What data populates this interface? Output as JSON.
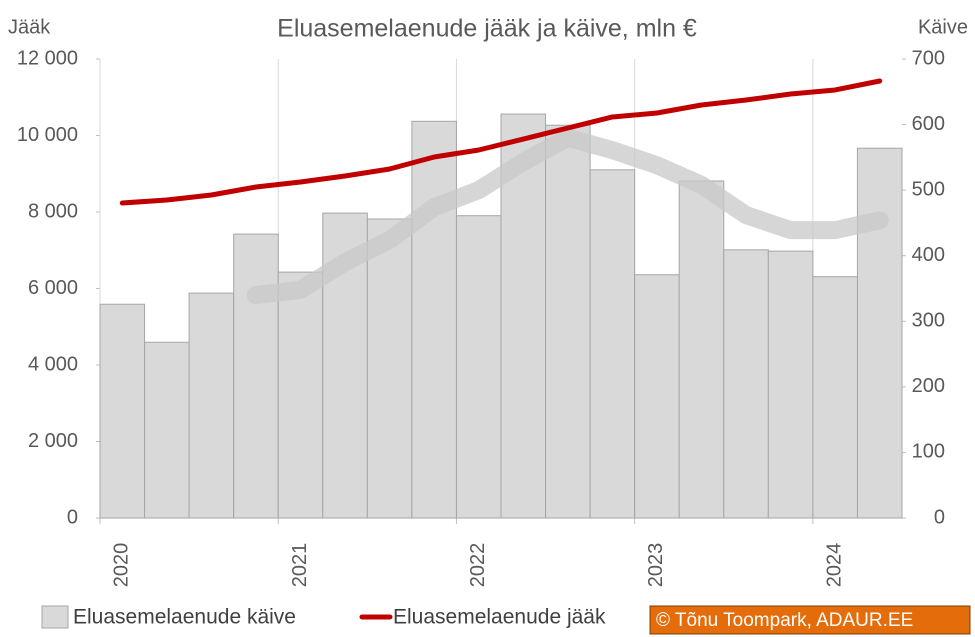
{
  "chart_data": {
    "type": "bar-line",
    "title": "Eluasemelaenude jääk ja käive, mln €",
    "y_label": "Jääk",
    "y2_label": "Käive",
    "credit": "© Tõnu Toompark, ADAUR.EE",
    "categories": [
      "2020",
      null,
      null,
      null,
      "2021",
      null,
      null,
      null,
      "2022",
      null,
      null,
      null,
      "2023",
      null,
      null,
      null,
      "2024",
      null
    ],
    "series": [
      {
        "name": "Eluasemelaenude käive",
        "type": "bar",
        "axis": "y2",
        "color": "#d9d9d9",
        "values": [
          326,
          268,
          343,
          433,
          375,
          465,
          456,
          605,
          461,
          616,
          599,
          531,
          371,
          514,
          409,
          407,
          368,
          564
        ]
      },
      {
        "name": "Eluasemelaenude jääk",
        "type": "line",
        "color": "#c00000",
        "values": [
          8235,
          8314,
          8444,
          8654,
          8784,
          8941,
          9124,
          9438,
          9621,
          9908,
          10196,
          10484,
          10588,
          10797,
          10928,
          11085,
          11190,
          11425
        ]
      }
    ],
    "trend": {
      "axis": "y2",
      "color": "#c8c8c8",
      "values": [
        null,
        null,
        null,
        340,
        348,
        390,
        424,
        474,
        500,
        543,
        580,
        561,
        538,
        508,
        462,
        439,
        439,
        454
      ]
    },
    "ylim": [
      0,
      12000
    ],
    "yticks": [
      0,
      {
        "value": 2000,
        "label": "2 000"
      },
      {
        "value": 4000,
        "label": "4 000"
      },
      {
        "value": 6000,
        "label": "6 000"
      },
      {
        "value": 8000,
        "label": "8 000"
      },
      {
        "value": 10000,
        "label": "10 000"
      },
      {
        "value": 12000,
        "label": "12 000"
      }
    ],
    "y2lim": [
      0,
      700
    ],
    "y2ticks": [
      0,
      100,
      200,
      300,
      400,
      500,
      600,
      700
    ],
    "grid": "x",
    "legend": "bottom"
  }
}
